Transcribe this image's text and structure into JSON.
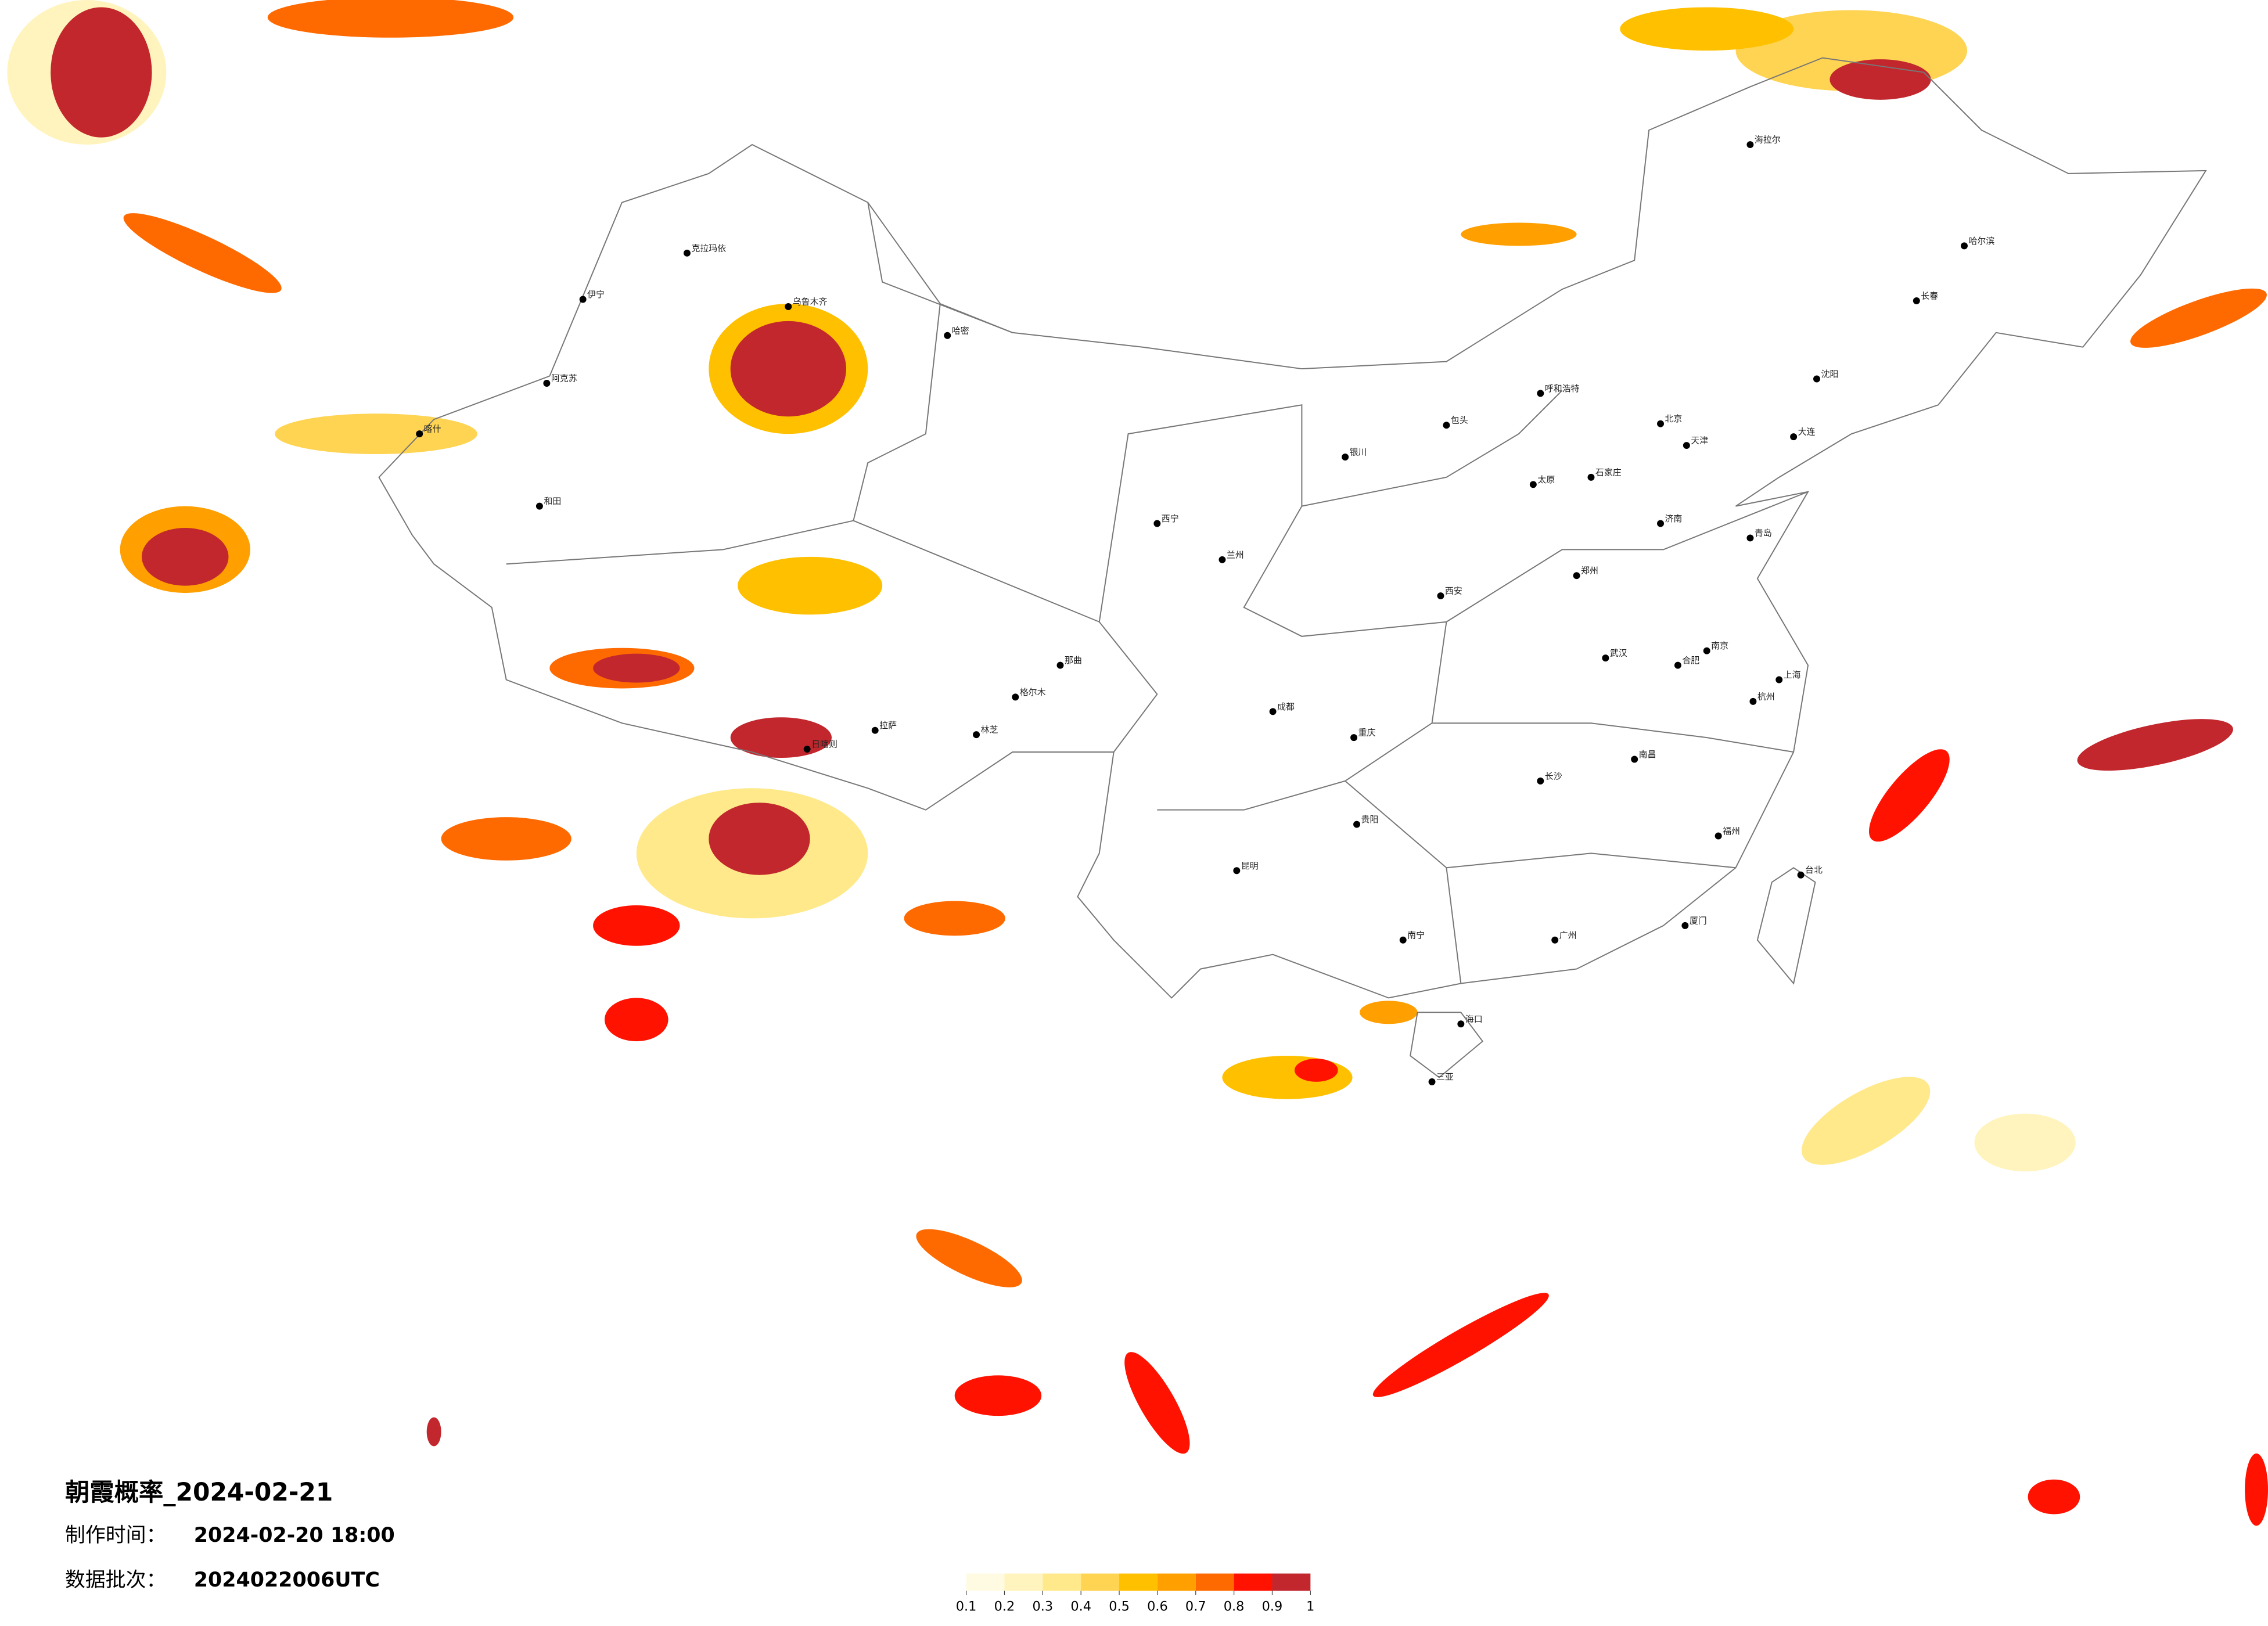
{
  "title": "朝霞概率_2024-02-21",
  "make_time": {
    "label": "制作时间：",
    "value": "2024-02-20 18:00"
  },
  "batch": {
    "label": "数据批次：",
    "value": "2024022006UTC"
  },
  "legend": {
    "colors": [
      "#fffbe3",
      "#fff4bd",
      "#ffe98a",
      "#ffd452",
      "#ffc000",
      "#ff9f00",
      "#ff6a00",
      "#ff1200",
      "#c1272d"
    ],
    "ticks": [
      0.1,
      0.2,
      0.3,
      0.4,
      0.5,
      0.6,
      0.7,
      0.8,
      0.9,
      1
    ]
  },
  "cities": [
    "乌鲁木齐",
    "克拉玛依",
    "伊宁",
    "阿克苏",
    "喀什",
    "和田",
    "哈密",
    "拉萨",
    "日喀则",
    "林芝",
    "那曲",
    "格尔木",
    "西宁",
    "兰州",
    "银川",
    "呼和浩特",
    "包头",
    "西安",
    "太原",
    "石家庄",
    "北京",
    "天津",
    "济南",
    "郑州",
    "合肥",
    "南京",
    "上海",
    "杭州",
    "武汉",
    "长沙",
    "南昌",
    "福州",
    "广州",
    "南宁",
    "海口",
    "三亚",
    "贵阳",
    "昆明",
    "成都",
    "重庆",
    "沈阳",
    "长春",
    "哈尔滨",
    "海拉尔",
    "台北",
    "大连",
    "青岛",
    "厦门"
  ]
}
